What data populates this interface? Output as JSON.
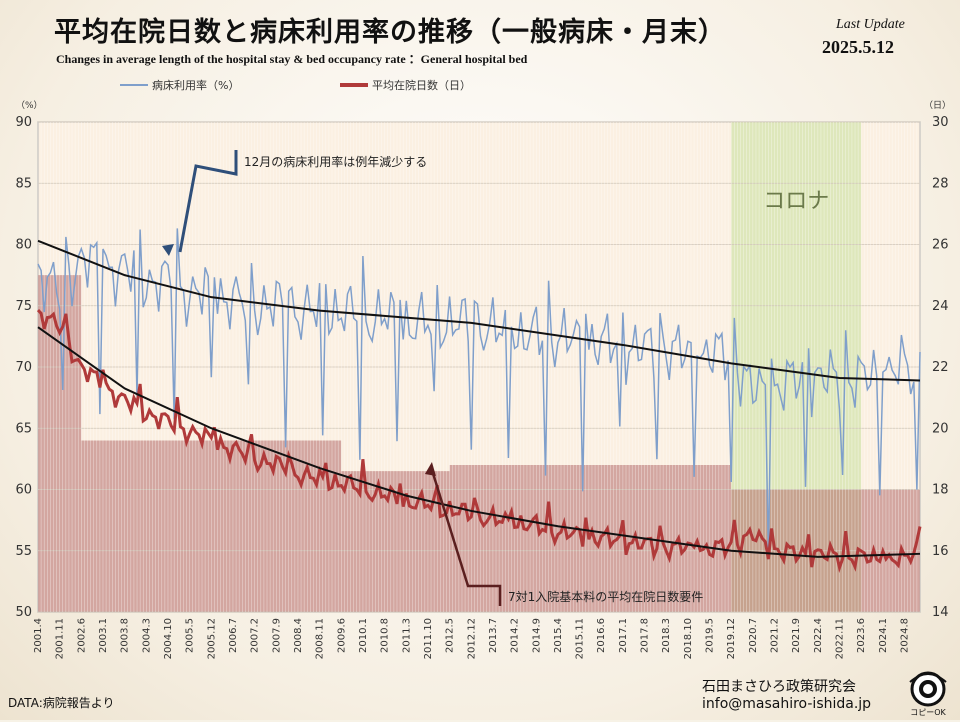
{
  "header": {
    "title": "平均在院日数と病床利用率の推移（一般病床・月末）",
    "subtitle": "Changes in average length of the hospital stay   & bed occupancy rate  ：General hospital bed",
    "last_update_label": "Last Update",
    "last_update_date": "2025.5.12"
  },
  "footer": {
    "source": "DATA:病院報告より",
    "org": "石田まさひろ政策研究会",
    "email": "info@masahiro-ishida.jp",
    "badge": "コピーOK"
  },
  "colors": {
    "occupancy": "#7f9fcb",
    "stay": "#b03a3a",
    "trend": "#111111",
    "bands": "#b36a6a",
    "corona": "#d8e5b4"
  },
  "chart_data": {
    "type": "line",
    "left_axis": {
      "unit": "（%）",
      "ylim": [
        50,
        90
      ],
      "ticks": [
        "50",
        "55",
        "60",
        "65",
        "70",
        "75",
        "80",
        "85",
        "90"
      ]
    },
    "right_axis": {
      "unit": "（日）",
      "ylim": [
        14,
        30
      ],
      "ticks": [
        "14",
        "16",
        "18",
        "20",
        "22",
        "24",
        "26",
        "28",
        "30"
      ]
    },
    "x_labels": [
      "2001.4",
      "2001.11",
      "2002.6",
      "2003.1",
      "2003.8",
      "2004.3",
      "2004.10",
      "2005.5",
      "2005.12",
      "2006.7",
      "2007.2",
      "2007.9",
      "2008.4",
      "2008.11",
      "2009.6",
      "2010.1",
      "2010.8",
      "2011.3",
      "2011.10",
      "2012.5",
      "2012.12",
      "2013.7",
      "2014.2",
      "2014.9",
      "2015.4",
      "2015.11",
      "2016.6",
      "2017.1",
      "2017.8",
      "2018.3",
      "2018.10",
      "2019.5",
      "2019.12",
      "2020.7",
      "2021.2",
      "2021.9",
      "2022.4",
      "2022.11",
      "2023.6",
      "2024.1",
      "2024.8"
    ],
    "x_start": "2001.4",
    "x_end": "2025.1",
    "series": [
      {
        "name": "病床利用率（%）",
        "axis": "left",
        "key": "occupancy",
        "anchors": [
          [
            "2001.4",
            78
          ],
          [
            "2001.11",
            76
          ],
          [
            "2002.6",
            79
          ],
          [
            "2003.1",
            78
          ],
          [
            "2003.8",
            78
          ],
          [
            "2004.3",
            77
          ],
          [
            "2004.10",
            77
          ],
          [
            "2005.5",
            76
          ],
          [
            "2005.12",
            76
          ],
          [
            "2006.7",
            75.5
          ],
          [
            "2007.2",
            75
          ],
          [
            "2007.9",
            75
          ],
          [
            "2008.4",
            74.5
          ],
          [
            "2008.11",
            74.5
          ],
          [
            "2009.6",
            74.5
          ],
          [
            "2010.1",
            74
          ],
          [
            "2010.8",
            74
          ],
          [
            "2011.3",
            73.5
          ],
          [
            "2011.10",
            73.5
          ],
          [
            "2012.5",
            73.5
          ],
          [
            "2012.12",
            73.5
          ],
          [
            "2013.7",
            73
          ],
          [
            "2014.2",
            72.5
          ],
          [
            "2014.9",
            72.5
          ],
          [
            "2015.4",
            72.5
          ],
          [
            "2015.11",
            72
          ],
          [
            "2016.6",
            72
          ],
          [
            "2017.1",
            71.5
          ],
          [
            "2017.8",
            71.5
          ],
          [
            "2018.3",
            71.5
          ],
          [
            "2018.10",
            71
          ],
          [
            "2019.5",
            71
          ],
          [
            "2019.12",
            71
          ],
          [
            "2020.7",
            68
          ],
          [
            "2021.2",
            68
          ],
          [
            "2021.9",
            69
          ],
          [
            "2022.4",
            69
          ],
          [
            "2022.11",
            69
          ],
          [
            "2023.6",
            69
          ],
          [
            "2024.1",
            69.5
          ],
          [
            "2024.8",
            70
          ],
          [
            "2025.1",
            69
          ]
        ]
      },
      {
        "name": "平均在院日数（日）",
        "axis": "right",
        "key": "stay",
        "anchors": [
          [
            "2001.4",
            23.8
          ],
          [
            "2001.11",
            23.3
          ],
          [
            "2002.6",
            22.0
          ],
          [
            "2003.1",
            21.4
          ],
          [
            "2003.8",
            20.9
          ],
          [
            "2004.3",
            20.5
          ],
          [
            "2004.10",
            20.2
          ],
          [
            "2005.5",
            19.9
          ],
          [
            "2005.12",
            19.6
          ],
          [
            "2006.7",
            19.3
          ],
          [
            "2007.2",
            19.0
          ],
          [
            "2007.9",
            18.8
          ],
          [
            "2008.4",
            18.5
          ],
          [
            "2008.11",
            18.3
          ],
          [
            "2009.6",
            18.2
          ],
          [
            "2010.1",
            18.0
          ],
          [
            "2010.8",
            17.8
          ],
          [
            "2011.3",
            17.6
          ],
          [
            "2011.10",
            17.5
          ],
          [
            "2012.5",
            17.3
          ],
          [
            "2012.12",
            17.2
          ],
          [
            "2013.7",
            17.0
          ],
          [
            "2014.2",
            16.9
          ],
          [
            "2014.9",
            16.8
          ],
          [
            "2015.4",
            16.6
          ],
          [
            "2015.11",
            16.5
          ],
          [
            "2016.6",
            16.4
          ],
          [
            "2017.1",
            16.3
          ],
          [
            "2017.8",
            16.2
          ],
          [
            "2018.3",
            16.1
          ],
          [
            "2018.10",
            16.1
          ],
          [
            "2019.5",
            16.0
          ],
          [
            "2019.12",
            16.2
          ],
          [
            "2020.7",
            16.5
          ],
          [
            "2021.2",
            16.0
          ],
          [
            "2021.9",
            15.9
          ],
          [
            "2022.4",
            15.9
          ],
          [
            "2022.11",
            15.8
          ],
          [
            "2023.6",
            15.8
          ],
          [
            "2024.1",
            15.7
          ],
          [
            "2024.8",
            15.7
          ],
          [
            "2025.1",
            16.2
          ]
        ]
      }
    ],
    "trend_lines": [
      {
        "axis": "left",
        "points": [
          [
            "2001.4",
            80.3
          ],
          [
            "2003.8",
            77.5
          ],
          [
            "2005.12",
            75.7
          ],
          [
            "2008.11",
            74.6
          ],
          [
            "2012.12",
            73.6
          ],
          [
            "2017.1",
            71.8
          ],
          [
            "2019.12",
            70.3
          ],
          [
            "2022.11",
            69.1
          ],
          [
            "2025.1",
            68.9
          ]
        ]
      },
      {
        "axis": "right",
        "points": [
          [
            "2001.4",
            23.3
          ],
          [
            "2003.8",
            21.3
          ],
          [
            "2005.12",
            20.0
          ],
          [
            "2008.11",
            18.7
          ],
          [
            "2011.3",
            17.8
          ],
          [
            "2012.12",
            17.3
          ],
          [
            "2015.4",
            16.8
          ],
          [
            "2017.8",
            16.4
          ],
          [
            "2019.12",
            16.0
          ],
          [
            "2022.4",
            15.8
          ],
          [
            "2025.1",
            15.9
          ]
        ]
      }
    ],
    "bands": [
      {
        "from": "2001.4",
        "to": "2002.6",
        "value": 25.0
      },
      {
        "from": "2002.6",
        "to": "2009.6",
        "value": 19.6
      },
      {
        "from": "2009.6",
        "to": "2012.5",
        "value": 18.6
      },
      {
        "from": "2012.5",
        "to": "2019.12",
        "value": 18.8
      },
      {
        "from": "2019.12",
        "to": "2023.6",
        "value": 18.0
      },
      {
        "from": "2023.6",
        "to": "2025.1",
        "value": 18.0
      }
    ],
    "corona_period": {
      "from": "2019.12",
      "to": "2023.6",
      "label": "コロナ"
    },
    "annotations": [
      {
        "text": "12月の病床利用率は例年減少する",
        "at": "2004.10"
      },
      {
        "text": "7対1入院基本料の平均在院日数要件",
        "at": "2011.10"
      }
    ]
  }
}
